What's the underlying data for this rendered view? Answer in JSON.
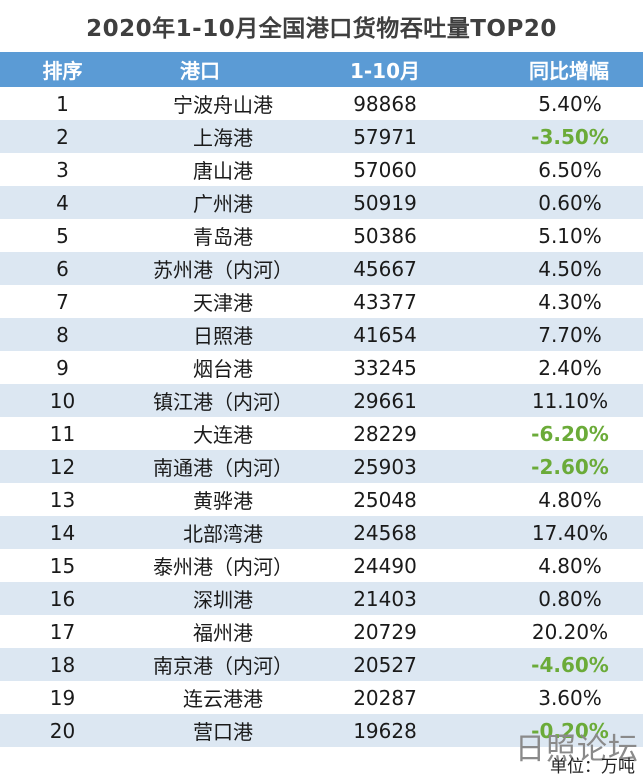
{
  "title": "2020年1-10月全国港口货物吞吐量TOP20",
  "headers": {
    "rank": "排序",
    "port": "港口",
    "volume": "1-10月",
    "change": "同比增幅"
  },
  "rows": [
    {
      "rank": "1",
      "port": "宁波舟山港",
      "volume": "98868",
      "change": "5.40%",
      "negative": false
    },
    {
      "rank": "2",
      "port": "上海港",
      "volume": "57971",
      "change": "-3.50%",
      "negative": true
    },
    {
      "rank": "3",
      "port": "唐山港",
      "volume": "57060",
      "change": "6.50%",
      "negative": false
    },
    {
      "rank": "4",
      "port": "广州港",
      "volume": "50919",
      "change": "0.60%",
      "negative": false
    },
    {
      "rank": "5",
      "port": "青岛港",
      "volume": "50386",
      "change": "5.10%",
      "negative": false
    },
    {
      "rank": "6",
      "port": "苏州港（内河）",
      "volume": "45667",
      "change": "4.50%",
      "negative": false
    },
    {
      "rank": "7",
      "port": "天津港",
      "volume": "43377",
      "change": "4.30%",
      "negative": false
    },
    {
      "rank": "8",
      "port": "日照港",
      "volume": "41654",
      "change": "7.70%",
      "negative": false
    },
    {
      "rank": "9",
      "port": "烟台港",
      "volume": "33245",
      "change": "2.40%",
      "negative": false
    },
    {
      "rank": "10",
      "port": "镇江港（内河）",
      "volume": "29661",
      "change": "11.10%",
      "negative": false
    },
    {
      "rank": "11",
      "port": "大连港",
      "volume": "28229",
      "change": "-6.20%",
      "negative": true
    },
    {
      "rank": "12",
      "port": "南通港（内河）",
      "volume": "25903",
      "change": "-2.60%",
      "negative": true
    },
    {
      "rank": "13",
      "port": "黄骅港",
      "volume": "25048",
      "change": "4.80%",
      "negative": false
    },
    {
      "rank": "14",
      "port": "北部湾港",
      "volume": "24568",
      "change": "17.40%",
      "negative": false
    },
    {
      "rank": "15",
      "port": "泰州港（内河）",
      "volume": "24490",
      "change": "4.80%",
      "negative": false
    },
    {
      "rank": "16",
      "port": "深圳港",
      "volume": "21403",
      "change": "0.80%",
      "negative": false
    },
    {
      "rank": "17",
      "port": "福州港",
      "volume": "20729",
      "change": "20.20%",
      "negative": false
    },
    {
      "rank": "18",
      "port": "南京港（内河）",
      "volume": "20527",
      "change": "-4.60%",
      "negative": true
    },
    {
      "rank": "19",
      "port": "连云港港",
      "volume": "20287",
      "change": "3.60%",
      "negative": false
    },
    {
      "rank": "20",
      "port": "营口港",
      "volume": "19628",
      "change": "-0.20%",
      "negative": true
    }
  ],
  "brand": "日照论坛",
  "footnote": "单位：万吨",
  "colors": {
    "header_bg": "#5b9bd5",
    "stripe": "#dce7f2",
    "negative": "#6bab39"
  }
}
